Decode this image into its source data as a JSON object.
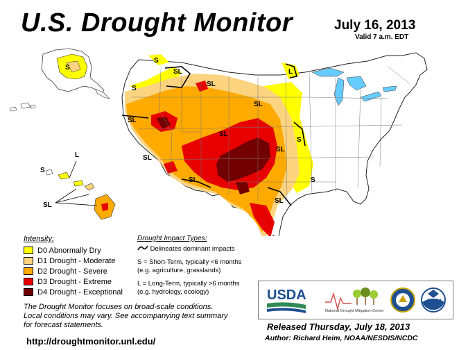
{
  "header": {
    "title": "U.S. Drought Monitor",
    "date": "July 16, 2013",
    "valid": "Valid 7 a.m. EDT"
  },
  "map": {
    "labels": {
      "s_alaska": "S",
      "s_northwest": "S",
      "sl_montana": "SL",
      "s_pacific_nw": "S",
      "sl_california": "SL",
      "sl_nevada": "SL",
      "sl_wyoming": "SL",
      "sl_colorado": "SL",
      "sl_nebraska": "SL",
      "sl_new_mexico": "SL",
      "sl_texas": "SL",
      "s_iowa": "S",
      "s_missouri": "S",
      "l_minnesota": "L",
      "sl_plains": "SL",
      "l_hawaii": "L",
      "s_hawaii": "S",
      "sl_hawaii": "SL"
    }
  },
  "legend": {
    "title": "Intensity:",
    "items": [
      {
        "label": "D0 Abnormally Dry",
        "color": "#ffff00"
      },
      {
        "label": "D1 Drought - Moderate",
        "color": "#fcd37f"
      },
      {
        "label": "D2 Drought - Severe",
        "color": "#ffaa00"
      },
      {
        "label": "D3 Drought - Extreme",
        "color": "#e60000"
      },
      {
        "label": "D4 Drought - Exceptional",
        "color": "#730000"
      }
    ]
  },
  "impacts": {
    "title": "Drought Impact Types:",
    "dominant": "Delineates dominant impacts",
    "short_term": "S = Short-Term, typically <6 months",
    "short_term_eg": "(e.g. agriculture, grasslands)",
    "long_term": "L = Long-Term, typically >6 months",
    "long_term_eg": "(e.g. hydrology, ecology)"
  },
  "notes": {
    "line1": "The Drought Monitor focuses on broad-scale conditions.",
    "line2": "Local conditions may vary. See accompanying text summary",
    "line3": "for forecast statements."
  },
  "logos": {
    "usda": "USDA",
    "ndmc_line1": "National",
    "ndmc_line2": "Drought Mitigation Center",
    "noaa": "NOAA"
  },
  "footer": {
    "url": "http://droughtmonitor.unl.edu/",
    "released": "Released Thursday, July 18, 2013",
    "author": "Author: Richard Heim, NOAA/NESDIS/NCDC"
  }
}
